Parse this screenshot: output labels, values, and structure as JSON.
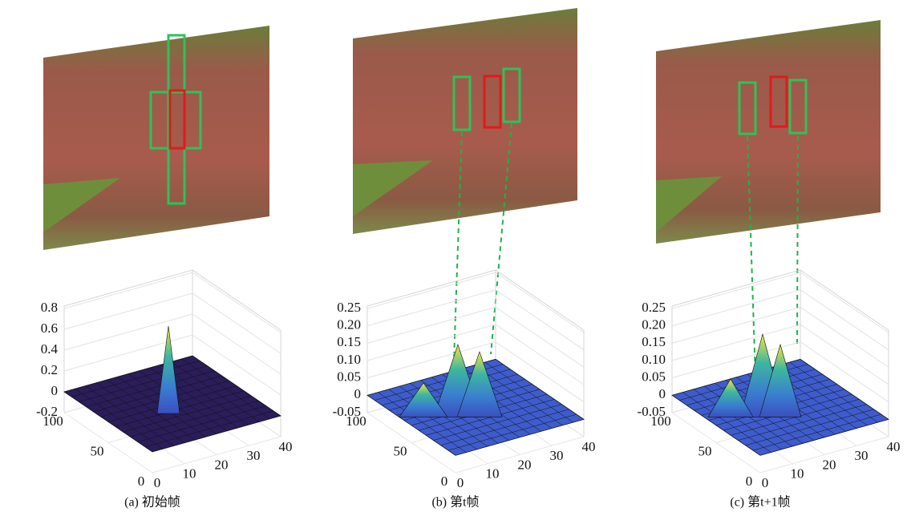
{
  "panels": [
    {
      "caption": "(a) 初始帧",
      "zticks": [
        "0.8",
        "0.6",
        "0.4",
        "0.2",
        "0",
        "-0.2"
      ],
      "xticks": [
        "0",
        "10",
        "20",
        "30",
        "40"
      ],
      "yticks": [
        "100",
        "50",
        "0"
      ]
    },
    {
      "caption": "(b) 第t帧",
      "zticks": [
        "0.25",
        "0.20",
        "0.15",
        "0.10",
        "0.05",
        "0",
        "-0.05"
      ],
      "xticks": [
        "0",
        "10",
        "20",
        "30",
        "40"
      ],
      "yticks": [
        "100",
        "50",
        "0"
      ]
    },
    {
      "caption": "(c) 第t+1帧",
      "zticks": [
        "0.25",
        "0.20",
        "0.15",
        "0.10",
        "0.05",
        "0",
        "-0.05"
      ],
      "xticks": [
        "0",
        "10",
        "20",
        "30",
        "40"
      ],
      "yticks": [
        "100",
        "50",
        "0"
      ]
    }
  ]
}
